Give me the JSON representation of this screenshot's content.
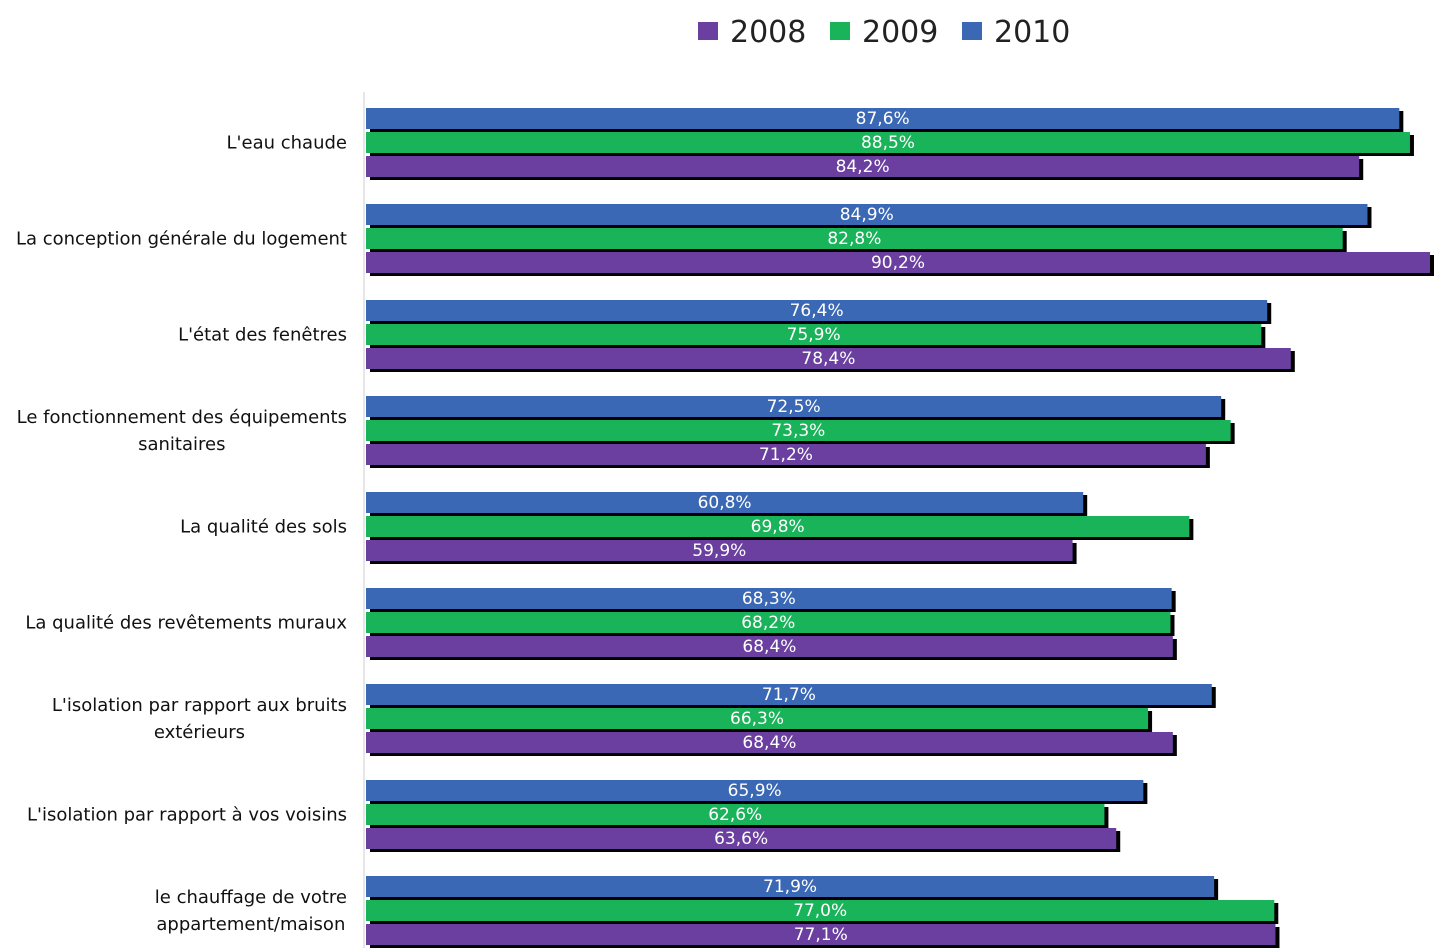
{
  "colors": {
    "2008": "#6b3fa0",
    "2009": "#19b35a",
    "2010": "#3a68b5",
    "shadow": "#000000",
    "axis": "#cccccc"
  },
  "chart_data": {
    "type": "bar",
    "orientation": "horizontal",
    "legend_position": "top-right",
    "grid": false,
    "xlim": [
      0,
      90.2
    ],
    "legend": [
      "2008",
      "2009",
      "2010"
    ],
    "categories": [
      [
        "L'eau chaude"
      ],
      [
        "La conception générale du logement"
      ],
      [
        "L'état des fenêtres"
      ],
      [
        "Le fonctionnement des équipements",
        "sanitaires"
      ],
      [
        "La qualité des sols"
      ],
      [
        "La qualité des revêtements muraux"
      ],
      [
        "L'isolation par rapport aux bruits",
        "extérieurs"
      ],
      [
        "L'isolation par rapport à vos voisins"
      ],
      [
        "le chauffage de votre",
        "appartement/maison"
      ]
    ],
    "series": [
      {
        "name": "2010",
        "values": [
          87.6,
          84.9,
          76.4,
          72.5,
          60.8,
          68.3,
          71.7,
          65.9,
          71.9
        ],
        "labels": [
          "87,6%",
          "84,9%",
          "76,4%",
          "72,5%",
          "60,8%",
          "68,3%",
          "71,7%",
          "65,9%",
          "71,9%"
        ]
      },
      {
        "name": "2009",
        "values": [
          88.5,
          82.8,
          75.9,
          73.3,
          69.8,
          68.2,
          66.3,
          62.6,
          77.0
        ],
        "labels": [
          "88,5%",
          "82,8%",
          "75,9%",
          "73,3%",
          "69,8%",
          "68,2%",
          "66,3%",
          "62,6%",
          "77,0%"
        ]
      },
      {
        "name": "2008",
        "values": [
          84.2,
          90.2,
          78.4,
          71.2,
          59.9,
          68.4,
          68.4,
          63.6,
          77.1
        ],
        "labels": [
          "84,2%",
          "90,2%",
          "78,4%",
          "71,2%",
          "59,9%",
          "68,4%",
          "68,4%",
          "63,6%",
          "77,1%"
        ]
      }
    ]
  }
}
